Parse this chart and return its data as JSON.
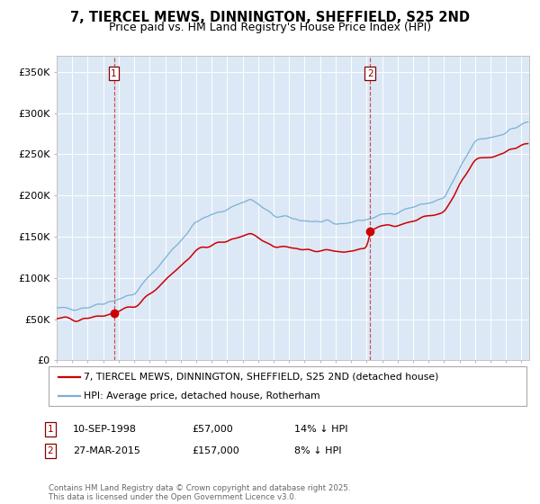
{
  "title": "7, TIERCEL MEWS, DINNINGTON, SHEFFIELD, S25 2ND",
  "subtitle": "Price paid vs. HM Land Registry's House Price Index (HPI)",
  "legend_property": "7, TIERCEL MEWS, DINNINGTON, SHEFFIELD, S25 2ND (detached house)",
  "legend_hpi": "HPI: Average price, detached house, Rotherham",
  "property_color": "#cc0000",
  "hpi_color": "#7ab0d4",
  "background_color": "#dce8f5",
  "purchase1_date": "1998-09-10",
  "purchase1_price": 57000,
  "purchase2_date": "2015-03-27",
  "purchase2_price": 157000,
  "ylabel_ticks": [
    "£0",
    "£50K",
    "£100K",
    "£150K",
    "£200K",
    "£250K",
    "£300K",
    "£350K"
  ],
  "ytick_values": [
    0,
    50000,
    100000,
    150000,
    200000,
    250000,
    300000,
    350000
  ],
  "ylim": [
    0,
    370000
  ],
  "copyright": "Contains HM Land Registry data © Crown copyright and database right 2025.\nThis data is licensed under the Open Government Licence v3.0.",
  "title_fontsize": 10.5,
  "subtitle_fontsize": 9
}
